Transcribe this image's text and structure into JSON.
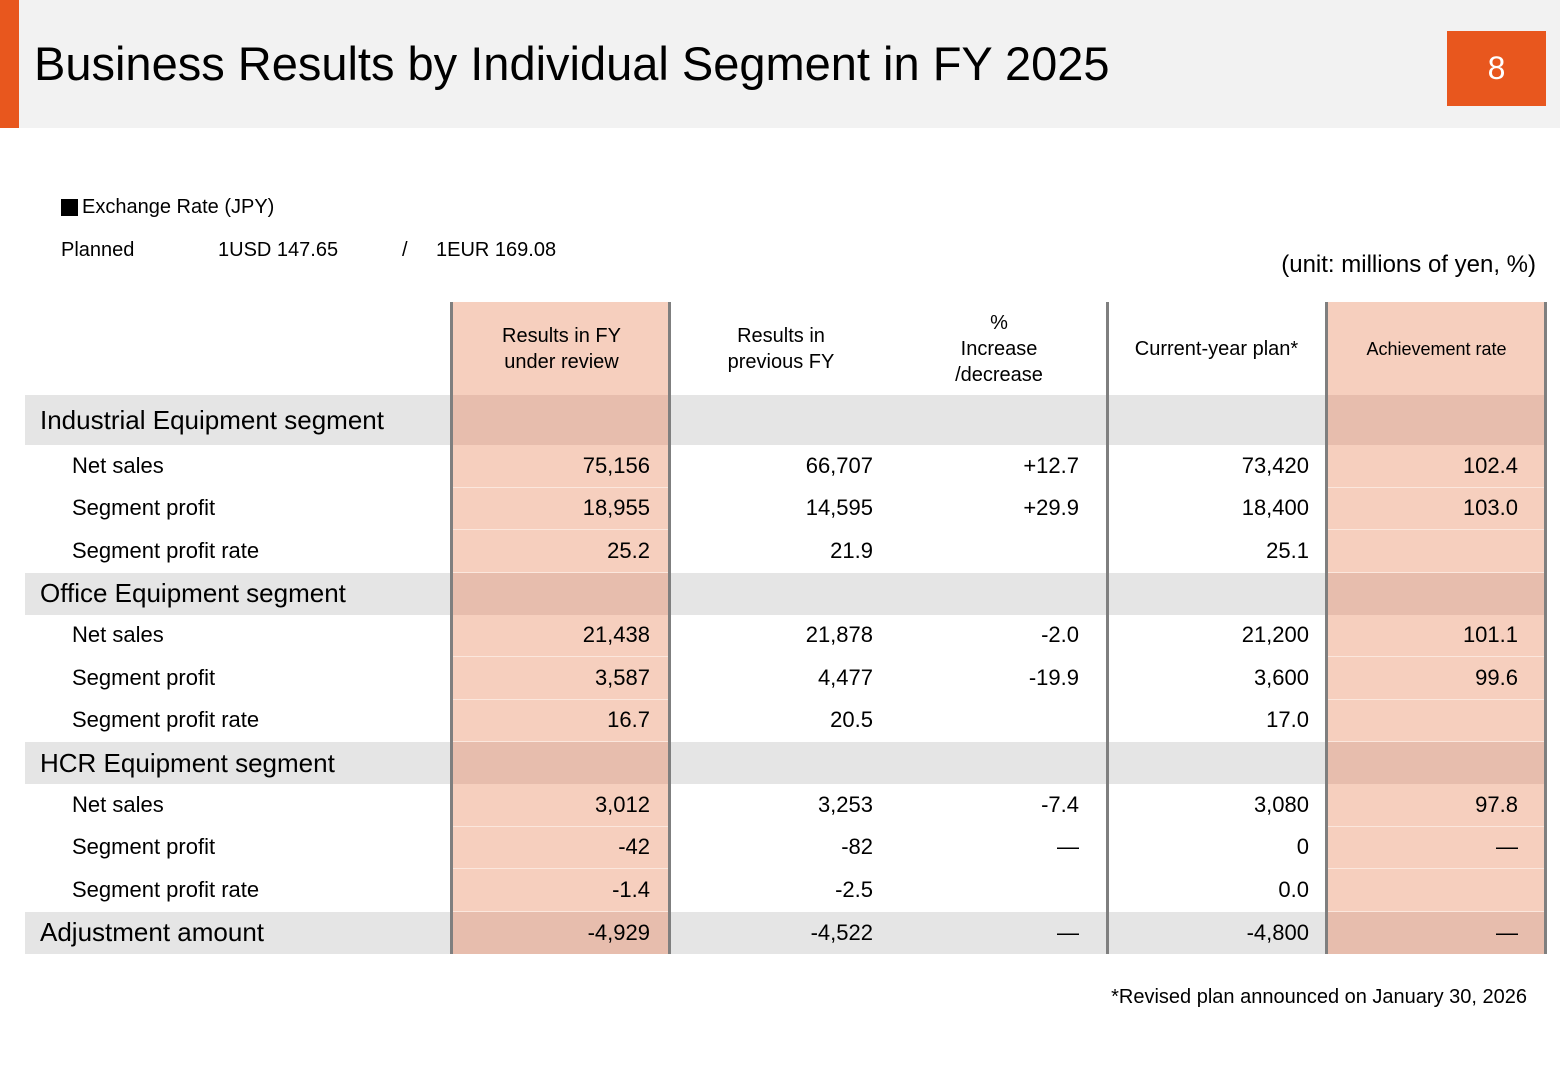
{
  "header": {
    "title": "Business Results by Individual Segment in FY 2025",
    "page_number": "8",
    "accent_color": "#e8571e"
  },
  "exchange_rate": {
    "title": "Exchange Rate (JPY)",
    "label": "Planned",
    "usd": "1USD  147.65",
    "separator": "/",
    "eur": "1EUR   169.08"
  },
  "unit_note": "(unit: millions of yen, %)",
  "table": {
    "headers": {
      "col1_line1": "Results in FY",
      "col1_line2": "under   review",
      "col2_line1": "Results in",
      "col2_line2": "previous   FY",
      "col3_line1": "%",
      "col3_line2": "Increase",
      "col3_line3": "/decrease",
      "col4": "Current-year plan*",
      "col5": "Achievement rate"
    },
    "segments": [
      {
        "name": "Industrial Equipment segment",
        "rows": [
          {
            "label": "Net sales",
            "current": "75,156",
            "previous": "66,707",
            "change": "+12.7",
            "plan": "73,420",
            "achievement": "102.4"
          },
          {
            "label": "Segment profit",
            "current": "18,955",
            "previous": "14,595",
            "change": "+29.9",
            "plan": "18,400",
            "achievement": "103.0"
          },
          {
            "label": "Segment profit rate",
            "current": "25.2",
            "previous": "21.9",
            "change": "",
            "plan": "25.1",
            "achievement": ""
          }
        ]
      },
      {
        "name": "Office Equipment segment",
        "rows": [
          {
            "label": "Net sales",
            "current": "21,438",
            "previous": "21,878",
            "change": "-2.0",
            "plan": "21,200",
            "achievement": "101.1"
          },
          {
            "label": "Segment profit",
            "current": "3,587",
            "previous": "4,477",
            "change": "-19.9",
            "plan": "3,600",
            "achievement": "99.6"
          },
          {
            "label": "Segment profit rate",
            "current": "16.7",
            "previous": "20.5",
            "change": "",
            "plan": "17.0",
            "achievement": ""
          }
        ]
      },
      {
        "name": "HCR Equipment segment",
        "rows": [
          {
            "label": "Net sales",
            "current": "3,012",
            "previous": "3,253",
            "change": "-7.4",
            "plan": "3,080",
            "achievement": "97.8"
          },
          {
            "label": "Segment profit",
            "current": "-42",
            "previous": "-82",
            "change": "―",
            "plan": "0",
            "achievement": "―"
          },
          {
            "label": "Segment profit rate",
            "current": "-1.4",
            "previous": "-2.5",
            "change": "",
            "plan": "0.0",
            "achievement": ""
          }
        ]
      }
    ],
    "adjustment": {
      "label": "Adjustment amount",
      "current": "-4,929",
      "previous": "-4,522",
      "change": "―",
      "plan": "-4,800",
      "achievement": "―"
    }
  },
  "footnote": "*Revised plan announced on January 30, 2026"
}
